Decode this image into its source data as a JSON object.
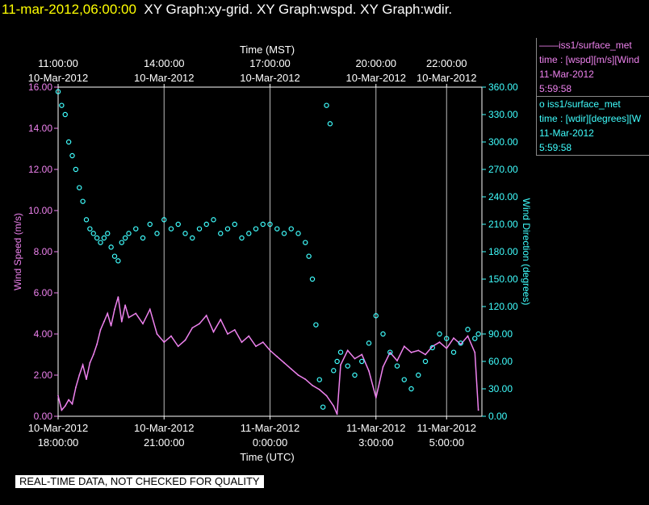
{
  "header": {
    "timestamp": "11-mar-2012,06:00:00",
    "graphs": "XY Graph:xy-grid.  XY Graph:wspd.  XY Graph:wdir."
  },
  "legend": [
    {
      "marker": "——",
      "name": "iss1/surface_met",
      "desc": "time : [wspd][m/s][Wind",
      "date": "11-Mar-2012",
      "time": "5:59:58",
      "color": "#ee82ee"
    },
    {
      "marker": "o ",
      "name": "iss1/surface_met",
      "desc": "time : [wdir][degrees][W",
      "date": "11-Mar-2012",
      "time": "5:59:58",
      "color": "#40ffff"
    }
  ],
  "notice": "REAL-TIME DATA, NOT CHECKED FOR QUALITY",
  "chart_data": {
    "type": "line",
    "top_axis": {
      "title": "Time (MST)",
      "ticks": [
        {
          "t": 18,
          "l1": "11:00:00",
          "l2": "10-Mar-2012"
        },
        {
          "t": 21,
          "l1": "14:00:00",
          "l2": "10-Mar-2012"
        },
        {
          "t": 24,
          "l1": "17:00:00",
          "l2": "10-Mar-2012"
        },
        {
          "t": 27,
          "l1": "20:00:00",
          "l2": "10-Mar-2012"
        },
        {
          "t": 29,
          "l1": "22:00:00",
          "l2": "10-Mar-2012"
        }
      ]
    },
    "bottom_axis": {
      "title": "Time (UTC)",
      "ticks": [
        {
          "t": 18,
          "l1": "10-Mar-2012",
          "l2": "18:00:00"
        },
        {
          "t": 21,
          "l1": "10-Mar-2012",
          "l2": "21:00:00"
        },
        {
          "t": 24,
          "l1": "11-Mar-2012",
          "l2": "0:00:00"
        },
        {
          "t": 27,
          "l1": "11-Mar-2012",
          "l2": "3:00:00"
        },
        {
          "t": 29,
          "l1": "11-Mar-2012",
          "l2": "5:00:00"
        }
      ]
    },
    "xlim": [
      18,
      30
    ],
    "y_left": {
      "label": "Wind Speed (m/s)",
      "range": [
        0,
        16
      ],
      "ticks": [
        "0.00",
        "2.00",
        "4.00",
        "6.00",
        "8.00",
        "10.00",
        "12.00",
        "14.00",
        "16.00"
      ],
      "color": "#ee82ee"
    },
    "y_right": {
      "label": "Wind Direction (degrees)",
      "range": [
        0,
        360
      ],
      "ticks": [
        "0.00",
        "30.00",
        "60.00",
        "90.00",
        "120.00",
        "150.00",
        "180.00",
        "210.00",
        "240.00",
        "270.00",
        "300.00",
        "330.00",
        "360.00"
      ],
      "color": "#40ffff"
    },
    "grid": true,
    "series": [
      {
        "name": "iss1/surface_met",
        "axis": "left",
        "color": "#ee82ee",
        "style": "line",
        "x": [
          18.0,
          18.1,
          18.2,
          18.3,
          18.4,
          18.5,
          18.6,
          18.7,
          18.8,
          18.9,
          19.0,
          19.1,
          19.2,
          19.3,
          19.4,
          19.5,
          19.6,
          19.7,
          19.8,
          19.9,
          20.0,
          20.2,
          20.4,
          20.6,
          20.8,
          21.0,
          21.2,
          21.4,
          21.6,
          21.8,
          22.0,
          22.2,
          22.4,
          22.6,
          22.8,
          23.0,
          23.2,
          23.4,
          23.6,
          23.8,
          24.0,
          24.2,
          24.4,
          24.6,
          24.8,
          25.0,
          25.2,
          25.4,
          25.6,
          25.8,
          25.9,
          26.0,
          26.2,
          26.4,
          26.6,
          26.8,
          27.0,
          27.2,
          27.4,
          27.6,
          27.8,
          28.0,
          28.2,
          28.4,
          28.6,
          28.8,
          29.0,
          29.2,
          29.4,
          29.6,
          29.8,
          29.9
        ],
        "values": [
          1.0,
          0.3,
          0.5,
          0.8,
          0.6,
          1.4,
          2.0,
          2.5,
          1.8,
          2.6,
          3.0,
          3.5,
          4.2,
          4.6,
          5.0,
          4.4,
          5.2,
          5.8,
          4.6,
          5.4,
          4.8,
          5.0,
          4.5,
          5.2,
          4.0,
          3.6,
          3.9,
          3.4,
          3.7,
          4.3,
          4.5,
          4.9,
          4.1,
          4.7,
          4.0,
          4.2,
          3.6,
          3.9,
          3.4,
          3.6,
          3.2,
          2.9,
          2.6,
          2.3,
          2.0,
          1.8,
          1.5,
          1.3,
          1.0,
          0.5,
          0.1,
          2.5,
          3.2,
          2.8,
          3.0,
          2.2,
          0.9,
          2.4,
          3.1,
          2.7,
          3.4,
          3.1,
          3.2,
          3.0,
          3.4,
          3.6,
          3.3,
          3.8,
          3.5,
          3.9,
          3.1,
          0.3
        ]
      },
      {
        "name": "iss1/surface_met",
        "axis": "right",
        "color": "#40ffff",
        "style": "scatter",
        "x": [
          18.0,
          18.1,
          18.2,
          18.3,
          18.4,
          18.5,
          18.6,
          18.7,
          18.8,
          18.9,
          19.0,
          19.1,
          19.2,
          19.3,
          19.4,
          19.5,
          19.6,
          19.7,
          19.8,
          19.9,
          20.0,
          20.2,
          20.4,
          20.6,
          20.8,
          21.0,
          21.2,
          21.4,
          21.6,
          21.8,
          22.0,
          22.2,
          22.4,
          22.6,
          22.8,
          23.0,
          23.2,
          23.4,
          23.6,
          23.8,
          24.0,
          24.2,
          24.4,
          24.6,
          24.8,
          25.0,
          25.1,
          25.2,
          25.3,
          25.4,
          25.5,
          25.6,
          25.7,
          25.8,
          25.9,
          26.0,
          26.2,
          26.4,
          26.6,
          26.8,
          27.0,
          27.2,
          27.4,
          27.6,
          27.8,
          28.0,
          28.2,
          28.4,
          28.6,
          28.8,
          29.0,
          29.2,
          29.4,
          29.6,
          29.8,
          29.9
        ],
        "values": [
          355,
          340,
          330,
          300,
          285,
          270,
          250,
          235,
          215,
          205,
          200,
          195,
          190,
          195,
          200,
          185,
          175,
          170,
          190,
          195,
          200,
          205,
          195,
          210,
          200,
          215,
          205,
          210,
          200,
          195,
          205,
          210,
          215,
          200,
          205,
          210,
          195,
          200,
          205,
          210,
          210,
          205,
          200,
          205,
          200,
          190,
          175,
          150,
          100,
          40,
          10,
          340,
          320,
          50,
          60,
          70,
          55,
          45,
          60,
          80,
          110,
          90,
          70,
          55,
          40,
          30,
          45,
          60,
          75,
          90,
          85,
          70,
          80,
          95,
          85,
          90
        ]
      }
    ]
  }
}
